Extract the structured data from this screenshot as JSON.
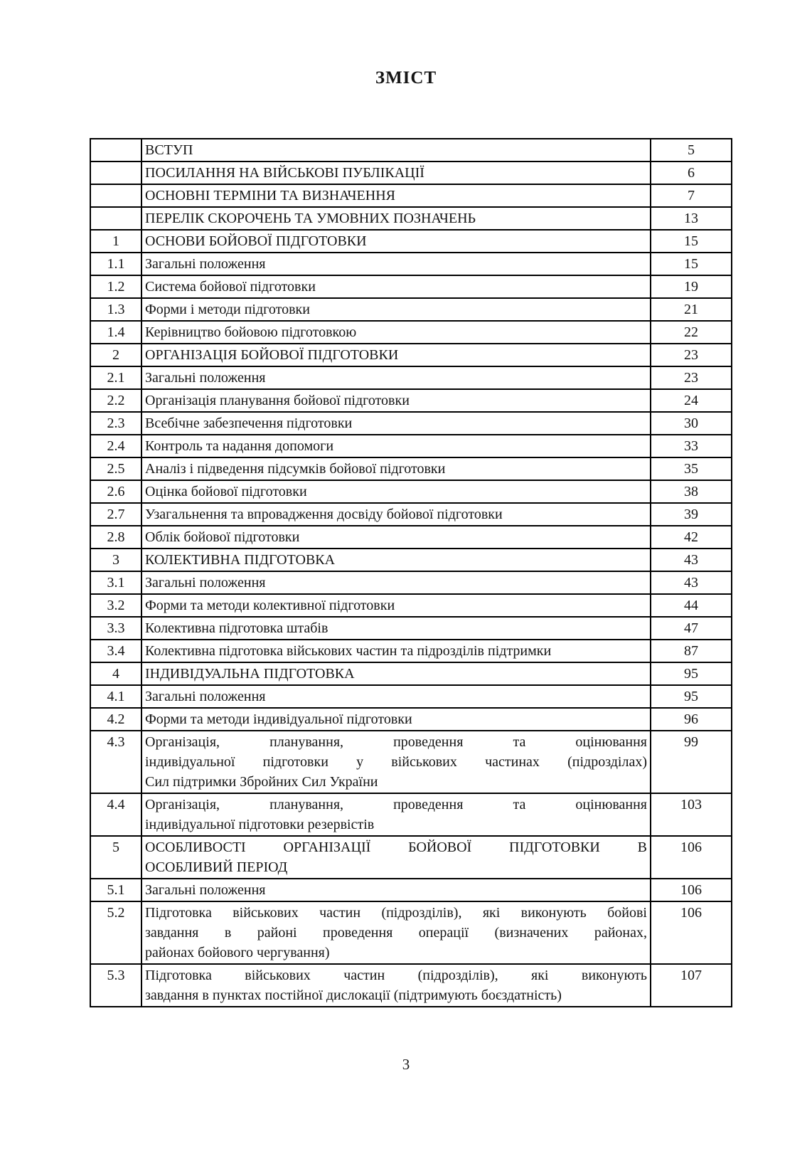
{
  "document": {
    "title": "ЗМІСТ",
    "footer_page_number": "3"
  },
  "toc": {
    "rows": [
      {
        "num": "",
        "title": "ВСТУП",
        "page": "5"
      },
      {
        "num": "",
        "title": "ПОСИЛАННЯ НА ВІЙСЬКОВІ ПУБЛІКАЦІЇ",
        "page": "6"
      },
      {
        "num": "",
        "title": "ОСНОВНІ ТЕРМІНИ ТА ВИЗНАЧЕННЯ",
        "page": "7"
      },
      {
        "num": "",
        "title": "ПЕРЕЛІК СКОРОЧЕНЬ ТА УМОВНИХ ПОЗНАЧЕНЬ",
        "page": "13"
      },
      {
        "num": "1",
        "title": "ОСНОВИ БОЙОВОЇ ПІДГОТОВКИ",
        "page": "15"
      },
      {
        "num": "1.1",
        "title": "Загальні положення",
        "page": "15"
      },
      {
        "num": "1.2",
        "title": "Система бойової підготовки",
        "page": "19"
      },
      {
        "num": "1.3",
        "title": "Форми і методи підготовки",
        "page": "21"
      },
      {
        "num": "1.4",
        "title": "Керівництво бойовою підготовкою",
        "page": "22"
      },
      {
        "num": "2",
        "title": "ОРГАНІЗАЦІЯ БОЙОВОЇ ПІДГОТОВКИ",
        "page": "23"
      },
      {
        "num": "2.1",
        "title": "Загальні положення",
        "page": "23"
      },
      {
        "num": "2.2",
        "title": "Організація планування бойової підготовки",
        "page": "24"
      },
      {
        "num": "2.3",
        "title": "Всебічне забезпечення підготовки",
        "page": "30"
      },
      {
        "num": "2.4",
        "title": "Контроль та надання допомоги",
        "page": "33"
      },
      {
        "num": "2.5",
        "title": "Аналіз і підведення підсумків бойової підготовки",
        "page": "35"
      },
      {
        "num": "2.6",
        "title": "Оцінка бойової підготовки",
        "page": "38"
      },
      {
        "num": "2.7",
        "title": "Узагальнення та впровадження досвіду бойової підготовки",
        "page": "39"
      },
      {
        "num": "2.8",
        "title": "Облік бойової підготовки",
        "page": "42"
      },
      {
        "num": "3",
        "title": "КОЛЕКТИВНА ПІДГОТОВКА",
        "page": "43"
      },
      {
        "num": "3.1",
        "title": "Загальні положення",
        "page": "43"
      },
      {
        "num": "3.2",
        "title": "Форми та методи колективної підготовки",
        "page": "44"
      },
      {
        "num": "3.3",
        "title": "Колективна підготовка штабів",
        "page": "47"
      },
      {
        "num": "3.4",
        "title": "Колективна підготовка військових частин та підрозділів підтримки",
        "page": "87"
      },
      {
        "num": "4",
        "title": "ІНДИВІДУАЛЬНА ПІДГОТОВКА",
        "page": "95"
      },
      {
        "num": "4.1",
        "title": "Загальні положення",
        "page": "95"
      },
      {
        "num": "4.2",
        "title": "Форми та методи індивідуальної підготовки",
        "page": "96"
      },
      {
        "num": "4.3",
        "title": [
          "Організація, планування, проведення та оцінювання",
          "індивідуальної підготовки у військових частинах (підрозділах)",
          "Сил підтримки Збройних Сил України"
        ],
        "page": "99"
      },
      {
        "num": "4.4",
        "title": [
          "Організація, планування, проведення та оцінювання",
          "індивідуальної підготовки резервістів"
        ],
        "page": "103"
      },
      {
        "num": "5",
        "title": [
          "ОСОБЛИВОСТІ ОРГАНІЗАЦІЇ БОЙОВОЇ ПІДГОТОВКИ В",
          "ОСОБЛИВИЙ ПЕРІОД"
        ],
        "page": "106"
      },
      {
        "num": "5.1",
        "title": "Загальні положення",
        "page": "106"
      },
      {
        "num": "5.2",
        "title": [
          "Підготовка військових частин (підрозділів), які виконують бойові",
          "завдання в районі проведення операції (визначених районах,",
          "районах бойового чергування)"
        ],
        "page": "106"
      },
      {
        "num": "5.3",
        "title": [
          "Підготовка військових частин (підрозділів), які виконують",
          "завдання в пунктах постійної дислокації (підтримують боєздатність)"
        ],
        "page": "107"
      }
    ]
  }
}
